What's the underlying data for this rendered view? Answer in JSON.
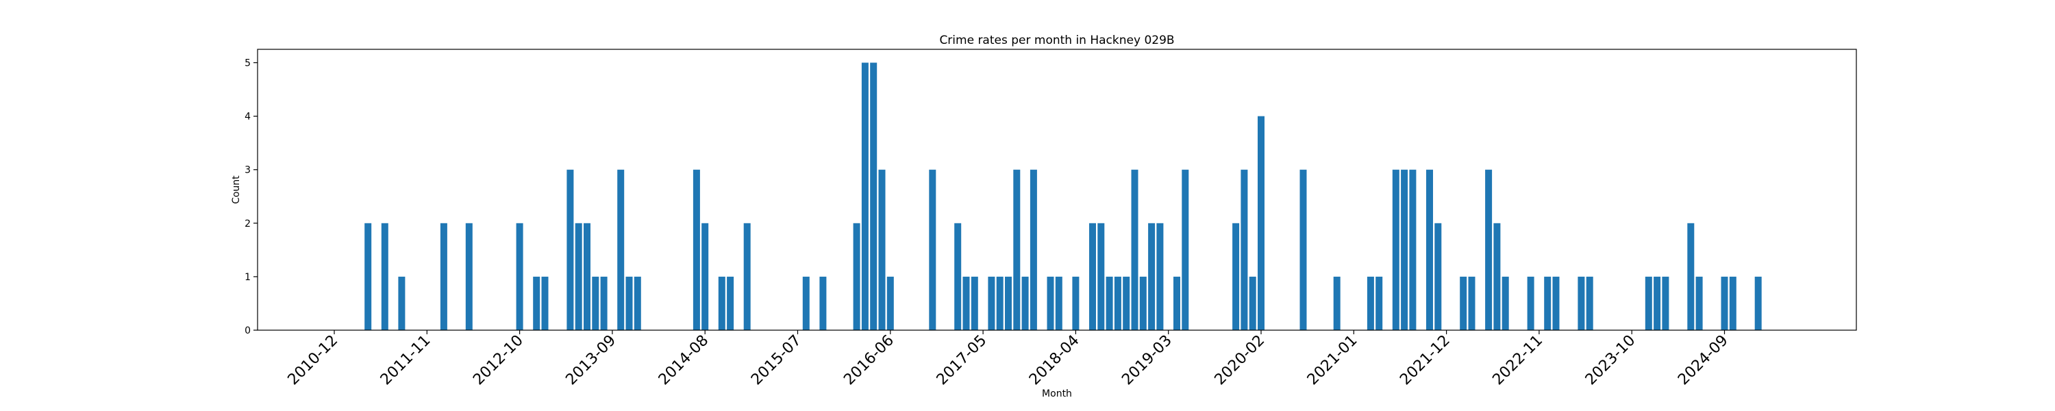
{
  "chart_data": {
    "type": "bar",
    "title": "Crime rates per month in Hackney 029B",
    "xlabel": "Month",
    "ylabel": "Count",
    "ylim": [
      0,
      5.25
    ],
    "yticks": [
      0,
      1,
      2,
      3,
      4,
      5
    ],
    "xtick_labels": [
      "2010-12",
      "2011-11",
      "2012-10",
      "2013-09",
      "2014-08",
      "2015-07",
      "2016-06",
      "2017-05",
      "2018-04",
      "2019-03",
      "2020-02",
      "2021-01",
      "2021-12",
      "2022-11",
      "2023-10",
      "2024-09"
    ],
    "color": "#1f77b4",
    "grid": false,
    "legend": "none",
    "categories": [
      "2011-04",
      "2011-06",
      "2011-08",
      "2012-01",
      "2012-04",
      "2012-10",
      "2012-12",
      "2013-01",
      "2013-04",
      "2013-05",
      "2013-06",
      "2013-07",
      "2013-08",
      "2013-10",
      "2013-11",
      "2013-12",
      "2014-07",
      "2014-08",
      "2014-10",
      "2014-11",
      "2015-01",
      "2015-08",
      "2015-10",
      "2016-02",
      "2016-03",
      "2016-04",
      "2016-05",
      "2016-06",
      "2016-11",
      "2017-02",
      "2017-03",
      "2017-04",
      "2017-06",
      "2017-07",
      "2017-08",
      "2017-09",
      "2017-10",
      "2017-11",
      "2018-01",
      "2018-02",
      "2018-04",
      "2018-06",
      "2018-07",
      "2018-08",
      "2018-09",
      "2018-10",
      "2018-11",
      "2018-12",
      "2019-01",
      "2019-02",
      "2019-04",
      "2019-05",
      "2019-11",
      "2019-12",
      "2020-01",
      "2020-02",
      "2020-07",
      "2020-11",
      "2021-03",
      "2021-04",
      "2021-06",
      "2021-07",
      "2021-08",
      "2021-10",
      "2021-11",
      "2022-02",
      "2022-03",
      "2022-05",
      "2022-06",
      "2022-07",
      "2022-10",
      "2022-12",
      "2023-01",
      "2023-04",
      "2023-05",
      "2023-12",
      "2024-01",
      "2024-02",
      "2024-05",
      "2024-06",
      "2024-09",
      "2024-10",
      "2025-01"
    ],
    "values": [
      2,
      2,
      1,
      2,
      2,
      2,
      1,
      1,
      3,
      2,
      2,
      1,
      1,
      3,
      1,
      1,
      3,
      2,
      1,
      1,
      2,
      1,
      1,
      2,
      5,
      5,
      3,
      1,
      3,
      2,
      1,
      1,
      1,
      1,
      1,
      3,
      1,
      3,
      1,
      1,
      1,
      2,
      2,
      1,
      1,
      1,
      3,
      1,
      2,
      2,
      1,
      3,
      2,
      3,
      1,
      4,
      3,
      1,
      1,
      1,
      3,
      3,
      3,
      3,
      2,
      1,
      1,
      3,
      2,
      1,
      1,
      1,
      1,
      1,
      1,
      1,
      1,
      1,
      2,
      1,
      1,
      1,
      1
    ]
  }
}
